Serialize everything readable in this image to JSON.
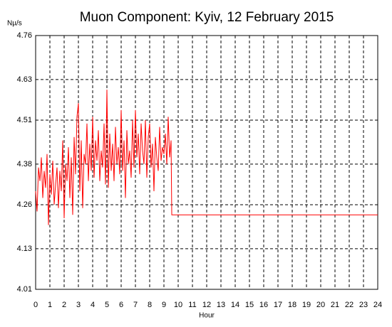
{
  "chart_data": {
    "type": "line",
    "title": "Muon Component: Kyiv, 12 February 2015",
    "y_label": "Nµ/s",
    "x_label": "Hour",
    "xlim": [
      0,
      24
    ],
    "xticks": [
      0,
      1,
      2,
      3,
      4,
      5,
      6,
      7,
      8,
      9,
      10,
      11,
      12,
      13,
      14,
      15,
      16,
      17,
      18,
      19,
      20,
      21,
      22,
      23,
      24
    ],
    "ylim": [
      4.01,
      4.76
    ],
    "yticks": [
      4.01,
      4.13,
      4.26,
      4.38,
      4.51,
      4.63,
      4.76
    ],
    "grid": true,
    "x": [
      0,
      0.1,
      0.2,
      0.3,
      0.4,
      0.5,
      0.6,
      0.7,
      0.8,
      0.9,
      1,
      1.1,
      1.2,
      1.3,
      1.4,
      1.5,
      1.6,
      1.7,
      1.8,
      1.9,
      2,
      2.1,
      2.2,
      2.3,
      2.4,
      2.5,
      2.6,
      2.7,
      2.8,
      2.9,
      3,
      3.1,
      3.2,
      3.3,
      3.4,
      3.5,
      3.6,
      3.7,
      3.8,
      3.9,
      4,
      4.1,
      4.2,
      4.3,
      4.4,
      4.5,
      4.6,
      4.7,
      4.8,
      4.9,
      5,
      5.1,
      5.2,
      5.3,
      5.4,
      5.5,
      5.6,
      5.7,
      5.8,
      5.9,
      6,
      6.1,
      6.2,
      6.3,
      6.4,
      6.5,
      6.6,
      6.7,
      6.8,
      6.9,
      7,
      7.1,
      7.2,
      7.3,
      7.4,
      7.5,
      7.6,
      7.7,
      7.8,
      7.9,
      8,
      8.1,
      8.2,
      8.3,
      8.4,
      8.5,
      8.6,
      8.7,
      8.8,
      8.9,
      9,
      9.1,
      9.2,
      9.3,
      9.4,
      9.5,
      9.55,
      24
    ],
    "series": [
      {
        "name": "Muon",
        "color": "#ff0000",
        "values": [
          4.3,
          4.24,
          4.37,
          4.33,
          4.4,
          4.28,
          4.36,
          4.31,
          4.41,
          4.2,
          4.35,
          4.29,
          4.39,
          4.26,
          4.32,
          4.37,
          4.25,
          4.36,
          4.3,
          4.45,
          4.22,
          4.38,
          4.33,
          4.43,
          4.28,
          4.4,
          4.23,
          4.46,
          4.35,
          4.52,
          4.56,
          4.3,
          4.45,
          4.25,
          4.41,
          4.38,
          4.5,
          4.33,
          4.44,
          4.36,
          4.52,
          4.34,
          4.45,
          4.39,
          4.48,
          4.33,
          4.42,
          4.37,
          4.5,
          4.32,
          4.6,
          4.31,
          4.47,
          4.36,
          4.44,
          4.33,
          4.49,
          4.38,
          4.43,
          4.35,
          4.54,
          4.36,
          4.45,
          4.28,
          4.48,
          4.38,
          4.42,
          4.34,
          4.51,
          4.37,
          4.54,
          4.4,
          4.47,
          4.35,
          4.5,
          4.42,
          4.38,
          4.51,
          4.34,
          4.46,
          4.5,
          4.37,
          4.44,
          4.3,
          4.46,
          4.4,
          4.36,
          4.49,
          4.39,
          4.43,
          4.41,
          4.47,
          4.38,
          4.52,
          4.4,
          4.45,
          4.23,
          4.23
        ]
      }
    ]
  }
}
